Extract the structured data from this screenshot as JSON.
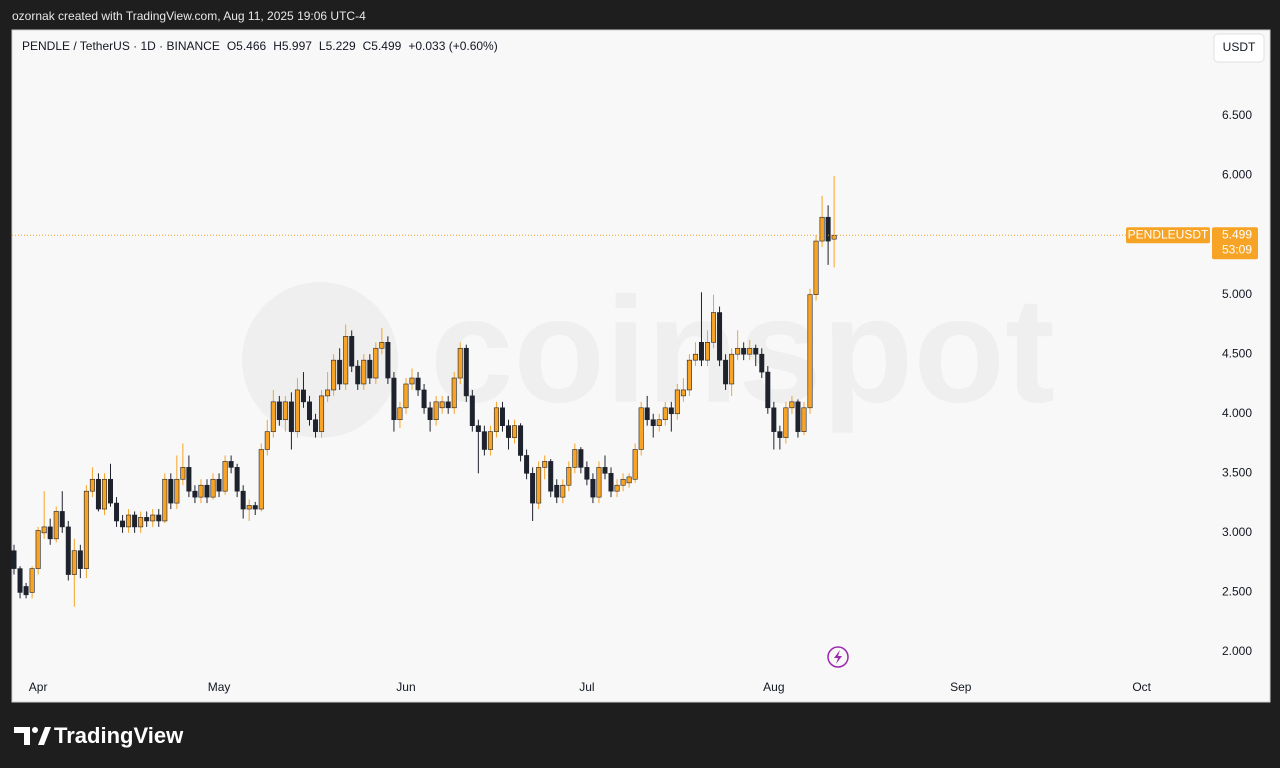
{
  "attribution": "ozornak created with TradingView.com, Aug 11, 2025 19:06 UTC-4",
  "brand": "TradingView",
  "currency_button": "USDT",
  "legend": {
    "symbol": "PENDLE / TetherUS · 1D · BINANCE",
    "open": "O5.466",
    "high": "H5.997",
    "low": "L5.229",
    "close": "C5.499",
    "change": "+0.033 (+0.60%)"
  },
  "watermark": "coinspot",
  "chart_data": {
    "type": "candlestick",
    "price_tag": "PENDLEUSDT",
    "countdown": "53:09",
    "up_color": "#f7a325",
    "down_color": "#1e222d",
    "grid": false,
    "xlim": [
      -0.5,
      197.5
    ],
    "xticks": [
      {
        "value": 4,
        "label": "Apr"
      },
      {
        "value": 34,
        "label": "May"
      },
      {
        "value": 65,
        "label": "Jun"
      },
      {
        "value": 95,
        "label": "Jul"
      },
      {
        "value": 126,
        "label": "Aug"
      },
      {
        "value": 157,
        "label": "Sep"
      },
      {
        "value": 187,
        "label": "Oct"
      }
    ],
    "ylim": [
      1.58,
      7.222
    ],
    "yticks": [
      {
        "value": 2,
        "label": "2.000"
      },
      {
        "value": 2.5,
        "label": "2.500"
      },
      {
        "value": 3,
        "label": "3.000"
      },
      {
        "value": 3.5,
        "label": "3.500"
      },
      {
        "value": 4,
        "label": "4.000"
      },
      {
        "value": 4.5,
        "label": "4.500"
      },
      {
        "value": 5,
        "label": "5.000"
      },
      {
        "value": 5.5,
        "label": "5.500"
      },
      {
        "value": 6,
        "label": "6.000"
      },
      {
        "value": 6.5,
        "label": "6.500"
      }
    ],
    "open": [
      2.85,
      2.7,
      2.55,
      2.5,
      2.7,
      3.0,
      3.05,
      2.95,
      3.18,
      3.05,
      2.65,
      2.85,
      2.7,
      3.35,
      3.45,
      3.2,
      3.45,
      3.25,
      3.1,
      3.05,
      3.15,
      3.05,
      3.13,
      3.1,
      3.15,
      3.1,
      3.45,
      3.25,
      3.45,
      3.55,
      3.35,
      3.3,
      3.4,
      3.3,
      3.45,
      3.35,
      3.6,
      3.55,
      3.35,
      3.2,
      3.23,
      3.2,
      3.7,
      3.85,
      4.1,
      3.95,
      4.1,
      3.85,
      4.2,
      4.1,
      3.95,
      3.85,
      4.15,
      4.2,
      4.45,
      4.25,
      4.65,
      4.4,
      4.25,
      4.45,
      4.3,
      4.55,
      4.6,
      4.3,
      3.95,
      4.05,
      4.25,
      4.3,
      4.2,
      4.05,
      3.95,
      4.05,
      4.1,
      4.05,
      4.3,
      4.55,
      4.15,
      3.9,
      3.85,
      3.7,
      3.85,
      4.05,
      3.9,
      3.8,
      3.9,
      3.65,
      3.5,
      3.25,
      3.55,
      3.6,
      3.4,
      3.3,
      3.4,
      3.55,
      3.7,
      3.55,
      3.45,
      3.3,
      3.55,
      3.5,
      3.35,
      3.4,
      3.42,
      3.45,
      3.7,
      4.05,
      3.95,
      3.9,
      3.95,
      4.05,
      4.0,
      4.15,
      4.2,
      4.45,
      4.6,
      4.45,
      4.6,
      4.85,
      4.45,
      4.25,
      4.5,
      4.55,
      4.5,
      4.55,
      4.5,
      4.35,
      4.05,
      3.85,
      3.8,
      4.05,
      4.1,
      3.85,
      4.05,
      5.0,
      5.45,
      5.65,
      5.466
    ],
    "high": [
      2.9,
      2.72,
      2.58,
      2.72,
      3.05,
      3.35,
      3.12,
      3.22,
      3.35,
      3.1,
      2.95,
      2.9,
      3.4,
      3.55,
      3.5,
      3.5,
      3.58,
      3.3,
      3.15,
      3.2,
      3.18,
      3.18,
      3.18,
      3.2,
      3.2,
      3.5,
      3.5,
      3.65,
      3.75,
      3.65,
      3.4,
      3.45,
      3.45,
      3.5,
      3.5,
      3.65,
      3.65,
      3.58,
      3.4,
      3.28,
      3.26,
      3.75,
      3.95,
      4.2,
      4.15,
      4.15,
      4.18,
      4.3,
      4.35,
      4.15,
      4.0,
      4.2,
      4.35,
      4.5,
      4.55,
      4.75,
      4.7,
      4.45,
      4.5,
      4.5,
      4.6,
      4.72,
      4.65,
      4.35,
      4.1,
      4.3,
      4.38,
      4.35,
      4.25,
      4.1,
      4.15,
      4.15,
      4.15,
      4.35,
      4.6,
      4.58,
      4.2,
      3.95,
      3.9,
      3.9,
      4.1,
      4.1,
      3.95,
      3.95,
      3.92,
      3.7,
      3.55,
      3.6,
      3.65,
      3.62,
      3.45,
      3.45,
      3.6,
      3.75,
      3.72,
      3.6,
      3.5,
      3.6,
      3.65,
      3.55,
      3.45,
      3.5,
      3.5,
      3.75,
      4.1,
      4.15,
      4.0,
      4.0,
      4.1,
      4.1,
      4.25,
      4.3,
      4.5,
      4.6,
      5.02,
      4.7,
      5.0,
      4.9,
      4.5,
      4.55,
      4.7,
      4.6,
      4.62,
      4.58,
      4.55,
      4.4,
      4.1,
      3.9,
      4.1,
      4.15,
      4.12,
      4.1,
      5.05,
      5.5,
      5.83,
      5.75,
      5.997
    ],
    "low": [
      2.65,
      2.45,
      2.45,
      2.45,
      2.65,
      2.95,
      2.9,
      2.92,
      3.0,
      2.6,
      2.38,
      2.62,
      2.62,
      3.3,
      3.18,
      3.15,
      3.22,
      3.05,
      3.0,
      3.0,
      3.0,
      3.0,
      3.05,
      3.05,
      3.05,
      3.08,
      3.2,
      3.2,
      3.4,
      3.3,
      3.25,
      3.25,
      3.25,
      3.28,
      3.3,
      3.32,
      3.5,
      3.3,
      3.12,
      3.1,
      3.15,
      3.18,
      3.65,
      3.8,
      3.9,
      3.85,
      3.7,
      3.8,
      4.05,
      3.9,
      3.8,
      3.8,
      4.1,
      4.15,
      4.2,
      4.2,
      4.35,
      4.2,
      4.2,
      4.25,
      4.25,
      4.5,
      4.25,
      3.85,
      3.88,
      4.0,
      4.2,
      4.15,
      4.0,
      3.85,
      3.9,
      4.0,
      4.0,
      4.0,
      4.25,
      4.1,
      3.85,
      3.5,
      3.65,
      3.65,
      3.8,
      3.85,
      3.7,
      3.75,
      3.6,
      3.45,
      3.1,
      3.2,
      3.45,
      3.3,
      3.25,
      3.25,
      3.35,
      3.5,
      3.5,
      3.4,
      3.25,
      3.25,
      3.45,
      3.3,
      3.3,
      3.35,
      3.38,
      3.42,
      3.65,
      3.9,
      3.8,
      3.85,
      3.9,
      3.85,
      3.95,
      4.1,
      4.15,
      4.4,
      4.4,
      4.4,
      4.55,
      4.4,
      4.2,
      4.15,
      4.45,
      4.45,
      4.45,
      4.4,
      4.3,
      4.0,
      3.7,
      3.7,
      3.75,
      4.0,
      3.8,
      3.82,
      4.0,
      4.95,
      5.4,
      5.25,
      5.229
    ],
    "close": [
      2.7,
      2.5,
      2.48,
      2.7,
      3.02,
      3.05,
      2.95,
      3.18,
      3.05,
      2.65,
      2.85,
      2.7,
      3.35,
      3.45,
      3.2,
      3.45,
      3.25,
      3.1,
      3.05,
      3.15,
      3.05,
      3.13,
      3.1,
      3.15,
      3.1,
      3.45,
      3.25,
      3.45,
      3.55,
      3.35,
      3.3,
      3.4,
      3.3,
      3.45,
      3.35,
      3.6,
      3.55,
      3.35,
      3.2,
      3.23,
      3.2,
      3.7,
      3.85,
      4.1,
      3.95,
      4.1,
      3.85,
      4.2,
      4.1,
      3.95,
      3.85,
      4.15,
      4.2,
      4.45,
      4.25,
      4.65,
      4.4,
      4.25,
      4.45,
      4.3,
      4.55,
      4.6,
      4.3,
      3.95,
      4.05,
      4.25,
      4.3,
      4.2,
      4.05,
      3.95,
      4.1,
      4.1,
      4.05,
      4.3,
      4.55,
      4.15,
      3.9,
      3.85,
      3.7,
      3.85,
      4.05,
      3.9,
      3.8,
      3.9,
      3.65,
      3.5,
      3.25,
      3.55,
      3.6,
      3.35,
      3.3,
      3.4,
      3.55,
      3.7,
      3.55,
      3.45,
      3.3,
      3.55,
      3.5,
      3.35,
      3.4,
      3.45,
      3.47,
      3.7,
      4.05,
      3.95,
      3.9,
      3.95,
      4.05,
      4.0,
      4.2,
      4.2,
      4.45,
      4.5,
      4.45,
      4.6,
      4.85,
      4.45,
      4.25,
      4.5,
      4.55,
      4.5,
      4.55,
      4.5,
      4.35,
      4.05,
      3.85,
      3.8,
      4.05,
      4.1,
      3.85,
      4.05,
      5.0,
      5.45,
      5.65,
      5.45,
      5.499
    ]
  }
}
